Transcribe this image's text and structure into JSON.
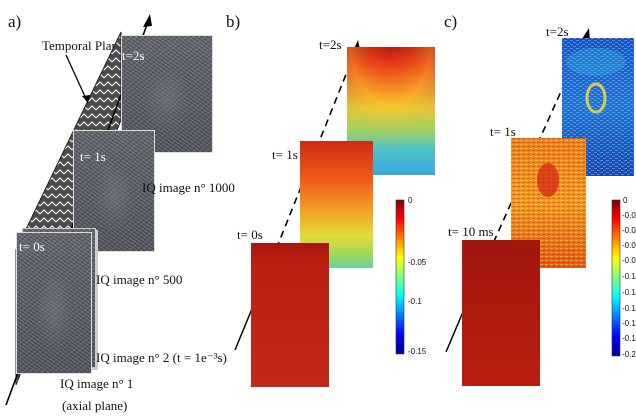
{
  "panels": {
    "a": {
      "label": "a)",
      "temporal_plane_label": "Temporal Plane",
      "times": [
        "t=2s",
        "t= 1s",
        "t= 0s"
      ],
      "captions": {
        "img1000": "IQ image n° 1000",
        "img500": "IQ image n° 500",
        "img2": "IQ image n° 2 (t = 1e⁻³s)",
        "img1_line1": "IQ image n° 1",
        "img1_line2": "(axial plane)"
      }
    },
    "b": {
      "label": "b)",
      "times": [
        "t=2s",
        "t= 1s",
        "t= 0s"
      ],
      "colorbar": {
        "ticks": [
          "0",
          "-0.05",
          "-0.1",
          "-0.15"
        ]
      }
    },
    "c": {
      "label": "c)",
      "times": [
        "t=2s",
        "t= 1s",
        "t= 10 ms"
      ],
      "colorbar": {
        "ticks": [
          "0",
          "-0.02",
          "-0.04",
          "-0.06",
          "-0.08",
          "-0.1",
          "-0.12",
          "-0.14",
          "-0.16",
          "-0.18",
          "-0.2"
        ]
      }
    }
  },
  "colors": {
    "jet_red": "#b21a10",
    "jet_blue": "#1030c8"
  }
}
